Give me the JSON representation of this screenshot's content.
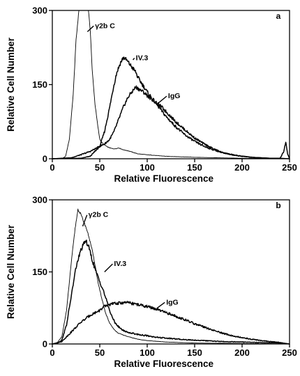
{
  "chart_data": [
    {
      "type": "line",
      "panel_label": "a",
      "xlabel": "Relative Fluorescence",
      "ylabel": "Relative Cell Number",
      "xlim": [
        0,
        250
      ],
      "ylim": [
        0,
        300
      ],
      "x_ticks": [
        0,
        50,
        100,
        150,
        200,
        250
      ],
      "y_ticks": [
        0,
        150,
        300
      ],
      "x_tick_labels": [
        "0",
        "50",
        "100",
        "150",
        "200",
        "250"
      ],
      "y_tick_labels": [
        "0",
        "150",
        "300"
      ],
      "grid": false,
      "series": [
        {
          "name": "γ2b C",
          "x": [
            0,
            10,
            14,
            18,
            22,
            25,
            28,
            30,
            33,
            36,
            38,
            40,
            42,
            45,
            48,
            50,
            52,
            55,
            58,
            62,
            66,
            70,
            75,
            80,
            90,
            100,
            120,
            150,
            200,
            250
          ],
          "y": [
            0,
            0,
            5,
            40,
            130,
            240,
            300,
            300,
            300,
            300,
            300,
            260,
            180,
            110,
            65,
            40,
            33,
            28,
            24,
            21,
            20,
            22,
            18,
            16,
            10,
            8,
            5,
            3,
            1,
            0
          ],
          "label_at": [
            45,
            270
          ],
          "line_from": [
            37,
            257
          ]
        },
        {
          "name": "IV.3",
          "x": [
            0,
            30,
            40,
            50,
            55,
            60,
            65,
            68,
            72,
            75,
            78,
            80,
            82,
            84,
            86,
            88,
            90,
            95,
            100,
            110,
            120,
            130,
            140,
            150,
            160,
            170,
            180,
            190,
            200,
            210,
            220,
            230,
            240,
            250
          ],
          "y": [
            0,
            1,
            5,
            25,
            55,
            100,
            150,
            175,
            195,
            205,
            200,
            195,
            190,
            185,
            180,
            175,
            165,
            150,
            135,
            110,
            85,
            65,
            48,
            35,
            25,
            18,
            12,
            8,
            5,
            3,
            2,
            1,
            1,
            0
          ],
          "label_at": [
            88,
            205
          ],
          "line_from": [
            85,
            200
          ]
        },
        {
          "name": "IgG",
          "x": [
            0,
            20,
            30,
            40,
            50,
            55,
            60,
            65,
            70,
            75,
            80,
            85,
            88,
            92,
            96,
            100,
            105,
            110,
            115,
            120,
            130,
            140,
            150,
            160,
            170,
            180,
            190,
            200,
            210,
            220,
            230,
            240,
            244,
            246,
            248,
            250
          ],
          "y": [
            0,
            2,
            8,
            15,
            25,
            30,
            38,
            55,
            80,
            105,
            125,
            138,
            145,
            140,
            135,
            128,
            120,
            112,
            105,
            95,
            75,
            58,
            42,
            30,
            20,
            12,
            8,
            5,
            3,
            2,
            1,
            1,
            15,
            35,
            10,
            0
          ],
          "label_at": [
            122,
            128
          ],
          "line_from": [
            110,
            110
          ]
        }
      ]
    },
    {
      "type": "line",
      "panel_label": "b",
      "xlabel": "Relative Fluorescence",
      "ylabel": "Relative Cell Number",
      "xlim": [
        0,
        250
      ],
      "ylim": [
        0,
        300
      ],
      "x_ticks": [
        0,
        50,
        100,
        150,
        200,
        250
      ],
      "y_ticks": [
        0,
        150,
        300
      ],
      "x_tick_labels": [
        "0",
        "50",
        "100",
        "150",
        "200",
        "250"
      ],
      "y_tick_labels": [
        "0",
        "150",
        "300"
      ],
      "grid": false,
      "series": [
        {
          "name": "γ2b C",
          "x": [
            0,
            5,
            10,
            15,
            20,
            24,
            27,
            30,
            33,
            36,
            39,
            42,
            45,
            48,
            52,
            56,
            60,
            65,
            70,
            80,
            90,
            100,
            120,
            150,
            200,
            250
          ],
          "y": [
            0,
            2,
            15,
            70,
            170,
            240,
            280,
            270,
            255,
            240,
            220,
            195,
            165,
            130,
            95,
            65,
            45,
            30,
            22,
            15,
            10,
            7,
            4,
            2,
            1,
            0
          ],
          "label_at": [
            38,
            270
          ],
          "line_from": [
            32,
            245
          ]
        },
        {
          "name": "IV.3",
          "x": [
            0,
            5,
            10,
            15,
            20,
            25,
            30,
            35,
            38,
            42,
            46,
            50,
            54,
            58,
            62,
            66,
            70,
            75,
            80,
            90,
            100,
            110,
            120,
            140,
            160,
            180,
            200,
            220,
            240,
            250
          ],
          "y": [
            0,
            1,
            8,
            40,
            100,
            160,
            195,
            215,
            205,
            175,
            150,
            130,
            110,
            85,
            60,
            45,
            35,
            28,
            24,
            20,
            17,
            14,
            12,
            9,
            7,
            5,
            4,
            3,
            2,
            0
          ],
          "label_at": [
            65,
            168
          ],
          "line_from": [
            55,
            150
          ]
        },
        {
          "name": "IgG",
          "x": [
            0,
            10,
            20,
            30,
            40,
            50,
            55,
            60,
            65,
            70,
            75,
            80,
            85,
            90,
            100,
            110,
            120,
            130,
            140,
            150,
            160,
            170,
            180,
            190,
            200,
            210,
            220,
            230,
            240,
            250
          ],
          "y": [
            0,
            5,
            25,
            45,
            60,
            70,
            78,
            82,
            84,
            85,
            86,
            86,
            84,
            82,
            78,
            72,
            65,
            58,
            50,
            42,
            35,
            28,
            22,
            17,
            13,
            10,
            7,
            5,
            3,
            0
          ],
          "label_at": [
            120,
            88
          ],
          "line_from": [
            110,
            74
          ]
        }
      ]
    }
  ]
}
